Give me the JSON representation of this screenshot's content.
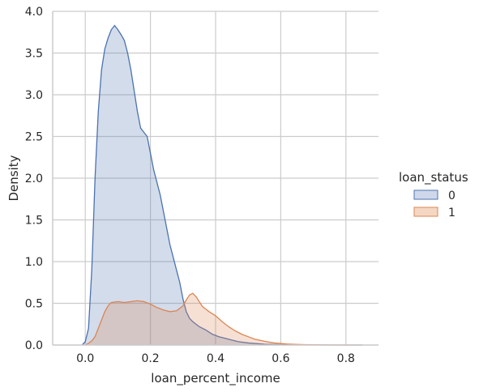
{
  "chart_data": {
    "type": "area",
    "kind": "kde",
    "xlabel": "loan_percent_income",
    "ylabel": "Density",
    "xlim": [
      -0.1,
      0.9
    ],
    "ylim": [
      0,
      4.0
    ],
    "x_ticks": [
      "0.0",
      "0.2",
      "0.4",
      "0.6",
      "0.8"
    ],
    "y_ticks": [
      "0.0",
      "0.5",
      "1.0",
      "1.5",
      "2.0",
      "2.5",
      "3.0",
      "3.5",
      "4.0"
    ],
    "grid": true,
    "legend_position": "right",
    "legend_title": "loan_status",
    "series": [
      {
        "name": "0",
        "color": "#4c72b0",
        "fill": "#cfd8ea",
        "x": [
          -0.01,
          0.0,
          0.01,
          0.02,
          0.03,
          0.04,
          0.05,
          0.06,
          0.07,
          0.08,
          0.09,
          0.1,
          0.11,
          0.12,
          0.13,
          0.14,
          0.15,
          0.16,
          0.17,
          0.18,
          0.19,
          0.2,
          0.21,
          0.22,
          0.23,
          0.24,
          0.25,
          0.26,
          0.27,
          0.28,
          0.29,
          0.3,
          0.31,
          0.32,
          0.33,
          0.35,
          0.37,
          0.39,
          0.41,
          0.43,
          0.45,
          0.47,
          0.5,
          0.55,
          0.6,
          0.65,
          0.7,
          0.75,
          0.8,
          0.85
        ],
        "y": [
          0.0,
          0.04,
          0.2,
          0.9,
          2.0,
          2.8,
          3.3,
          3.55,
          3.68,
          3.78,
          3.83,
          3.78,
          3.72,
          3.65,
          3.5,
          3.3,
          3.05,
          2.8,
          2.6,
          2.55,
          2.5,
          2.3,
          2.1,
          1.95,
          1.8,
          1.6,
          1.4,
          1.2,
          1.05,
          0.9,
          0.75,
          0.55,
          0.4,
          0.32,
          0.28,
          0.22,
          0.18,
          0.13,
          0.1,
          0.08,
          0.06,
          0.04,
          0.025,
          0.01,
          0.005,
          0.002,
          0.001,
          0.0,
          0.0,
          0.0
        ]
      },
      {
        "name": "1",
        "color": "#dd8452",
        "fill": "#f4d7c3",
        "x": [
          0.0,
          0.01,
          0.02,
          0.03,
          0.04,
          0.05,
          0.06,
          0.07,
          0.08,
          0.1,
          0.12,
          0.14,
          0.16,
          0.18,
          0.2,
          0.22,
          0.24,
          0.26,
          0.28,
          0.3,
          0.31,
          0.32,
          0.33,
          0.34,
          0.35,
          0.36,
          0.38,
          0.4,
          0.42,
          0.44,
          0.46,
          0.48,
          0.5,
          0.52,
          0.55,
          0.58,
          0.62,
          0.66,
          0.7,
          0.75,
          0.8,
          0.85
        ],
        "y": [
          0.0,
          0.02,
          0.05,
          0.1,
          0.2,
          0.3,
          0.4,
          0.47,
          0.51,
          0.52,
          0.51,
          0.52,
          0.53,
          0.52,
          0.49,
          0.45,
          0.42,
          0.4,
          0.41,
          0.47,
          0.54,
          0.6,
          0.62,
          0.58,
          0.52,
          0.46,
          0.4,
          0.35,
          0.28,
          0.22,
          0.17,
          0.13,
          0.1,
          0.07,
          0.045,
          0.025,
          0.012,
          0.006,
          0.003,
          0.001,
          0.0,
          0.0
        ]
      }
    ]
  }
}
